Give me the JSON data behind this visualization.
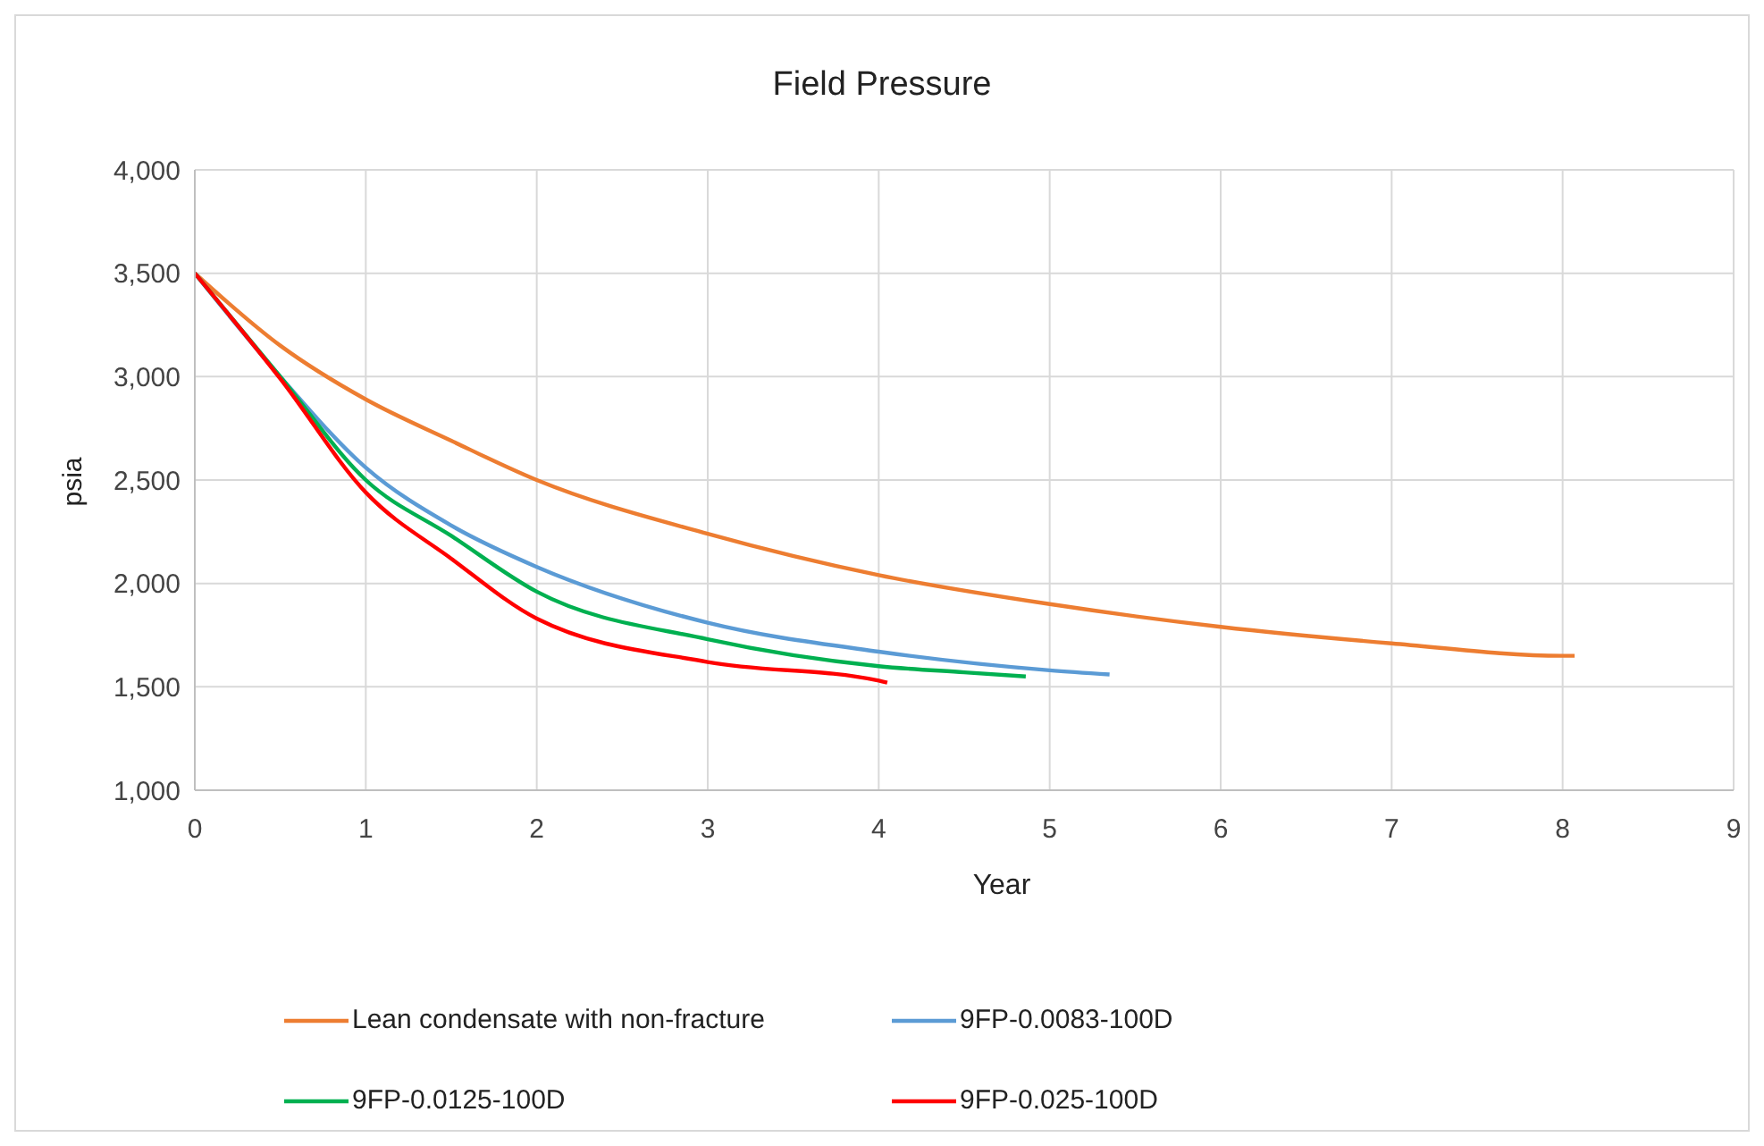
{
  "chart_data": {
    "type": "line",
    "title": "Field Pressure",
    "xlabel": "Year",
    "ylabel": "psia",
    "xlim": [
      0,
      9
    ],
    "xticks": [
      0,
      1,
      2,
      3,
      4,
      5,
      6,
      7,
      8,
      9
    ],
    "ylim": [
      1000,
      4000
    ],
    "yticks": [
      {
        "value": 1000,
        "label": "1,000"
      },
      {
        "value": 1500,
        "label": "1,500"
      },
      {
        "value": 2000,
        "label": "2,000"
      },
      {
        "value": 2500,
        "label": "2,500"
      },
      {
        "value": 3000,
        "label": "3,000"
      },
      {
        "value": 3500,
        "label": "3,500"
      },
      {
        "value": 4000,
        "label": "4,000"
      }
    ],
    "grid": true,
    "legend": "bottom",
    "marker": "none",
    "line_style": "solid",
    "series": [
      {
        "name": "Lean condensate with non-fracture",
        "color": "#ed7d31",
        "x": [
          0,
          0.5,
          1,
          1.5,
          2,
          3,
          4,
          5,
          6,
          7,
          8,
          8.07
        ],
        "values": [
          3500,
          3150,
          2890,
          2690,
          2500,
          2240,
          2040,
          1900,
          1790,
          1710,
          1650,
          1650
        ]
      },
      {
        "name": "9FP-0.0083-100D",
        "color": "#5b9bd5",
        "x": [
          0,
          0.5,
          1,
          1.5,
          2,
          3,
          4,
          5,
          5.35
        ],
        "values": [
          3500,
          3000,
          2560,
          2280,
          2080,
          1810,
          1670,
          1580,
          1560
        ]
      },
      {
        "name": "9FP-0.0125-100D",
        "color": "#00b050",
        "x": [
          0,
          0.5,
          1,
          1.5,
          2,
          3,
          4,
          4.5,
          4.86
        ],
        "values": [
          3500,
          3000,
          2500,
          2230,
          1960,
          1730,
          1600,
          1570,
          1550
        ]
      },
      {
        "name": "9FP-0.025-100D",
        "color": "#ff0000",
        "x": [
          0,
          0.5,
          1,
          1.5,
          2,
          3,
          4,
          4.05
        ],
        "values": [
          3500,
          2990,
          2440,
          2120,
          1830,
          1620,
          1530,
          1520
        ]
      }
    ]
  }
}
